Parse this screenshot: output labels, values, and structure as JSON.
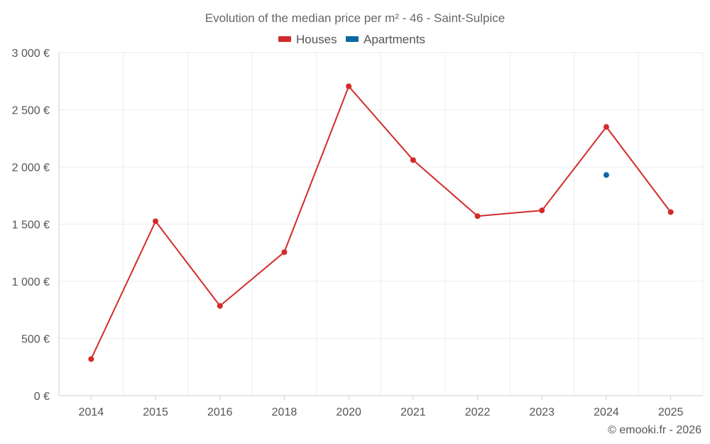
{
  "chart_data": {
    "type": "line",
    "title": "Evolution of the median price per m² - 46 - Saint-Sulpice",
    "categories": [
      "2014",
      "2015",
      "2016",
      "2018",
      "2020",
      "2021",
      "2022",
      "2023",
      "2024",
      "2025"
    ],
    "series": [
      {
        "name": "Houses",
        "color": "#d32a2a",
        "values": [
          320,
          1525,
          785,
          1255,
          2705,
          2060,
          1570,
          1620,
          2350,
          1605
        ]
      },
      {
        "name": "Apartments",
        "color": "#0b6aa2",
        "values": [
          null,
          null,
          null,
          null,
          null,
          null,
          null,
          null,
          1930,
          null
        ]
      }
    ],
    "ylim": [
      0,
      3000
    ],
    "yticks": [
      0,
      500,
      1000,
      1500,
      2000,
      2500,
      3000
    ],
    "ytick_labels": [
      "0 €",
      "500 €",
      "1 000 €",
      "1 500 €",
      "2 000 €",
      "2 500 €",
      "3 000 €"
    ],
    "xlabel": "",
    "ylabel": "",
    "grid": true,
    "legend_position": "top-center"
  },
  "credit": "© emooki.fr - 2026"
}
